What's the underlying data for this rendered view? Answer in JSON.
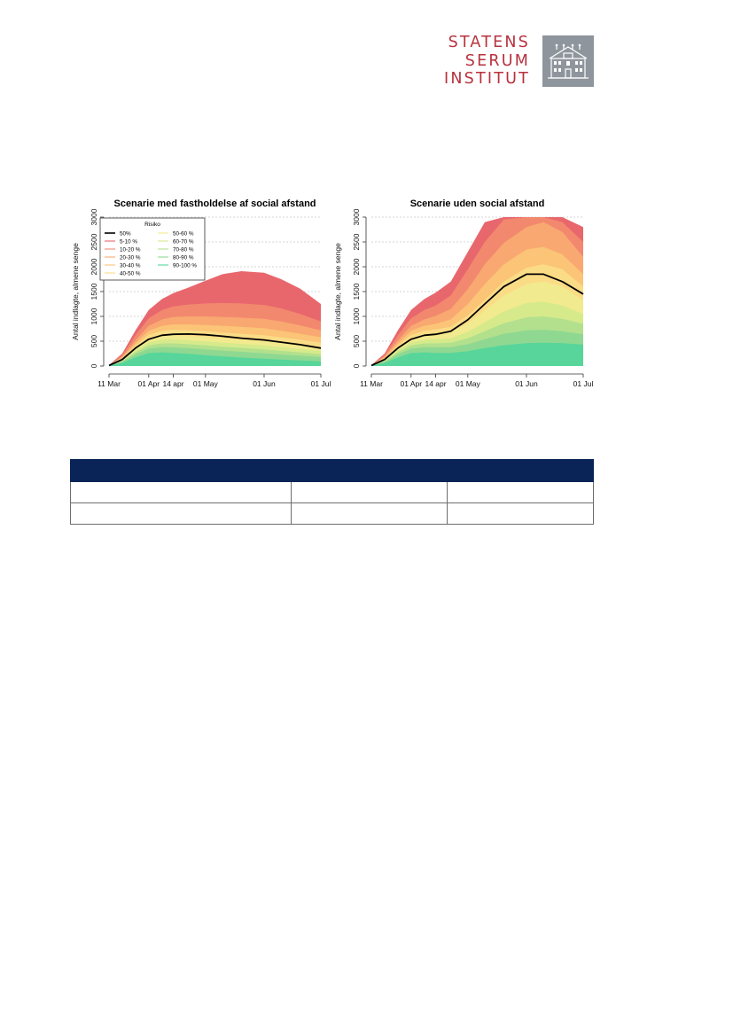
{
  "logo": {
    "lines": [
      "STATENS",
      "SERUM",
      "INSTITUT"
    ],
    "icon": "building-icon",
    "colors": {
      "text": "#b8313d",
      "box": "#8e959c"
    }
  },
  "chart_data": [
    {
      "type": "area",
      "title": "Scenarie med fastholdelse af social afstand",
      "ylabel": "Antal indlagte, almene senge",
      "ylim": [
        0,
        3000
      ],
      "yticks": [
        "0",
        "500",
        "1000",
        "1500",
        "2000",
        "2500",
        "3000"
      ],
      "xticks": [
        "11 Mar",
        "01 Apr",
        "14 apr",
        "01 May",
        "01 Jun",
        "01 Jul"
      ],
      "x_dates": [
        "2020-03-11",
        "2020-03-18",
        "2020-03-25",
        "2020-04-01",
        "2020-04-08",
        "2020-04-14",
        "2020-04-22",
        "2020-05-01",
        "2020-05-10",
        "2020-05-20",
        "2020-06-01",
        "2020-06-10",
        "2020-06-20",
        "2020-07-01"
      ],
      "grid": true,
      "legend": {
        "title": "Risiko",
        "position": "top-left",
        "entries": [
          "50%",
          "5-10 %",
          "10-20 %",
          "20-30 %",
          "30-40 %",
          "40-50 %",
          "50-60 %",
          "60-70 %",
          "70-80 %",
          "80-90 %",
          "90-100 %"
        ]
      },
      "bands": [
        {
          "name": "5-10 %",
          "color": "#e8676d",
          "upper": [
            20,
            250,
            720,
            1130,
            1350,
            1470,
            1580,
            1720,
            1850,
            1910,
            1880,
            1750,
            1560,
            1250
          ]
        },
        {
          "name": "10-20 %",
          "color": "#f2886e",
          "upper": [
            18,
            220,
            620,
            960,
            1130,
            1200,
            1240,
            1260,
            1270,
            1260,
            1230,
            1160,
            1050,
            900
          ]
        },
        {
          "name": "20-30 %",
          "color": "#f8a870",
          "upper": [
            16,
            190,
            520,
            810,
            940,
            990,
            1000,
            1000,
            990,
            975,
            950,
            900,
            820,
            720
          ]
        },
        {
          "name": "30-40 %",
          "color": "#fbc477",
          "upper": [
            14,
            170,
            460,
            710,
            810,
            840,
            840,
            825,
            810,
            790,
            760,
            710,
            650,
            580
          ]
        },
        {
          "name": "40-50 %",
          "color": "#fbdc86",
          "upper": [
            12,
            150,
            410,
            630,
            710,
            730,
            720,
            700,
            675,
            650,
            620,
            575,
            530,
            470
          ]
        },
        {
          "name": "50-60 %",
          "color": "#f2ea8e",
          "upper": [
            10,
            130,
            360,
            550,
            610,
            620,
            605,
            580,
            555,
            530,
            500,
            460,
            420,
            375
          ]
        },
        {
          "name": "60-70 %",
          "color": "#d6ea8c",
          "upper": [
            9,
            115,
            320,
            480,
            530,
            535,
            520,
            495,
            470,
            445,
            415,
            380,
            345,
            305
          ]
        },
        {
          "name": "70-80 %",
          "color": "#b3e08d",
          "upper": [
            8,
            100,
            280,
            415,
            455,
            455,
            440,
            415,
            390,
            365,
            335,
            305,
            275,
            240
          ]
        },
        {
          "name": "80-90 %",
          "color": "#8fd892",
          "upper": [
            7,
            85,
            240,
            350,
            380,
            375,
            360,
            335,
            310,
            285,
            258,
            232,
            208,
            180
          ]
        },
        {
          "name": "90-100 %",
          "color": "#57d59a",
          "upper": [
            5,
            65,
            175,
            260,
            275,
            265,
            245,
            220,
            195,
            170,
            148,
            128,
            110,
            92
          ]
        }
      ],
      "median": {
        "name": "50%",
        "color": "#000000",
        "values": [
          10,
          130,
          360,
          540,
          620,
          640,
          645,
          630,
          600,
          560,
          525,
          480,
          430,
          360
        ]
      }
    },
    {
      "type": "area",
      "title": "Scenarie uden social afstand",
      "ylabel": "Antal indlagte, almene senge",
      "ylim": [
        0,
        3000
      ],
      "yticks": [
        "0",
        "500",
        "1000",
        "1500",
        "2000",
        "2500",
        "3000"
      ],
      "xticks": [
        "11 Mar",
        "01 Apr",
        "14 apr",
        "01 May",
        "01 Jun",
        "01 Jul"
      ],
      "x_dates": [
        "2020-03-11",
        "2020-03-18",
        "2020-03-25",
        "2020-04-01",
        "2020-04-08",
        "2020-04-14",
        "2020-04-22",
        "2020-05-01",
        "2020-05-10",
        "2020-05-20",
        "2020-06-01",
        "2020-06-10",
        "2020-06-20",
        "2020-07-01"
      ],
      "grid": true,
      "bands": [
        {
          "name": "5-10 %",
          "color": "#e8676d",
          "upper": [
            20,
            250,
            720,
            1130,
            1350,
            1480,
            1700,
            2300,
            2900,
            3000,
            3000,
            3000,
            3000,
            2800
          ]
        },
        {
          "name": "10-20 %",
          "color": "#f2886e",
          "upper": [
            18,
            220,
            620,
            960,
            1130,
            1220,
            1420,
            1950,
            2500,
            2950,
            3000,
            3000,
            2900,
            2500
          ]
        },
        {
          "name": "20-30 %",
          "color": "#f8a870",
          "upper": [
            16,
            190,
            520,
            810,
            940,
            1010,
            1150,
            1550,
            2050,
            2480,
            2800,
            2900,
            2700,
            2200
          ]
        },
        {
          "name": "30-40 %",
          "color": "#fbc477",
          "upper": [
            14,
            170,
            460,
            710,
            810,
            850,
            940,
            1250,
            1650,
            2050,
            2350,
            2400,
            2250,
            1850
          ]
        },
        {
          "name": "40-50 %",
          "color": "#fbdc86",
          "upper": [
            12,
            150,
            410,
            630,
            710,
            740,
            790,
            1020,
            1330,
            1700,
            1980,
            2050,
            1950,
            1600
          ]
        },
        {
          "name": "50-60 %",
          "color": "#f2ea8e",
          "upper": [
            10,
            130,
            360,
            550,
            620,
            640,
            680,
            860,
            1120,
            1420,
            1650,
            1700,
            1600,
            1320
          ]
        },
        {
          "name": "60-70 %",
          "color": "#d6ea8c",
          "upper": [
            9,
            115,
            320,
            480,
            530,
            540,
            560,
            690,
            880,
            1100,
            1270,
            1300,
            1220,
            1050
          ]
        },
        {
          "name": "70-80 %",
          "color": "#b3e08d",
          "upper": [
            8,
            100,
            280,
            415,
            455,
            455,
            470,
            560,
            700,
            860,
            980,
            1000,
            950,
            850
          ]
        },
        {
          "name": "80-90 %",
          "color": "#8fd892",
          "upper": [
            7,
            85,
            240,
            350,
            380,
            375,
            380,
            440,
            540,
            650,
            720,
            730,
            700,
            640
          ]
        },
        {
          "name": "90-100 %",
          "color": "#57d59a",
          "upper": [
            5,
            65,
            175,
            260,
            275,
            265,
            262,
            300,
            360,
            420,
            460,
            470,
            460,
            430
          ]
        }
      ],
      "median": {
        "name": "50%",
        "color": "#000000",
        "values": [
          10,
          130,
          360,
          540,
          620,
          640,
          700,
          930,
          1250,
          1600,
          1850,
          1850,
          1700,
          1450
        ]
      }
    }
  ],
  "table": {
    "header_color": "#0b2458",
    "columns": [
      "",
      "",
      ""
    ],
    "rows": [
      [
        "",
        "",
        ""
      ],
      [
        "",
        "",
        ""
      ]
    ]
  }
}
